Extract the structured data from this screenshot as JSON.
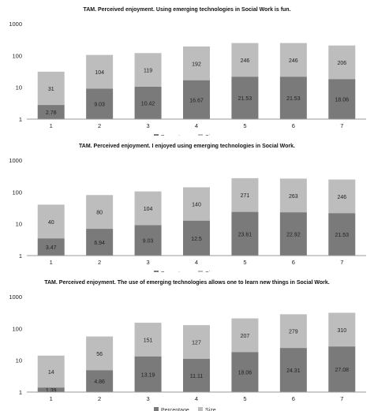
{
  "colors": {
    "percentage": "#7a7a7a",
    "size": "#bdbdbd",
    "axis": "#9a9a9a"
  },
  "chart_data": [
    {
      "type": "bar",
      "stacked": true,
      "yscale": "log",
      "ylim": [
        1,
        1000
      ],
      "yticks": [
        "1",
        "10",
        "100",
        "1000"
      ],
      "title": "TAM.  Perceived enjoyment. Using emerging technologies in Social Work is fun.",
      "categories": [
        "1",
        "2",
        "3",
        "4",
        "5",
        "6",
        "7"
      ],
      "series": [
        {
          "name": "Percentage",
          "values": [
            2.78,
            9.03,
            10.42,
            16.67,
            21.53,
            21.53,
            18.06
          ]
        },
        {
          "name": "Size",
          "values": [
            31,
            104,
            119,
            192,
            246,
            246,
            206
          ]
        }
      ],
      "legend": "bottom",
      "grid": false
    },
    {
      "type": "bar",
      "stacked": true,
      "yscale": "log",
      "ylim": [
        1,
        1000
      ],
      "yticks": [
        "1",
        "10",
        "100",
        "1000"
      ],
      "title": "TAM.  Perceived enjoyment. I enjoyed using emerging technologies in Social Work.",
      "categories": [
        "1",
        "2",
        "3",
        "4",
        "5",
        "6",
        "7"
      ],
      "series": [
        {
          "name": "Percentage",
          "values": [
            3.47,
            6.94,
            9.03,
            12.5,
            23.61,
            22.92,
            21.53
          ]
        },
        {
          "name": "Size",
          "values": [
            40,
            80,
            104,
            140,
            271,
            263,
            246
          ]
        }
      ],
      "legend": "bottom",
      "grid": false
    },
    {
      "type": "bar",
      "stacked": true,
      "yscale": "log",
      "ylim": [
        1,
        1000
      ],
      "yticks": [
        "1",
        "10",
        "100",
        "1000"
      ],
      "title": "TAM. Perceived enjoyment. The use of emerging technologies allows one to learn new things in Social Work.",
      "categories": [
        "1",
        "2",
        "3",
        "4",
        "5",
        "6",
        "7"
      ],
      "series": [
        {
          "name": "Percentage",
          "values": [
            1.39,
            4.86,
            13.19,
            11.11,
            18.06,
            24.31,
            27.08
          ]
        },
        {
          "name": "Size",
          "values": [
            14,
            56,
            151,
            127,
            207,
            279,
            310
          ]
        }
      ],
      "legend": "bottom",
      "grid": false
    }
  ]
}
